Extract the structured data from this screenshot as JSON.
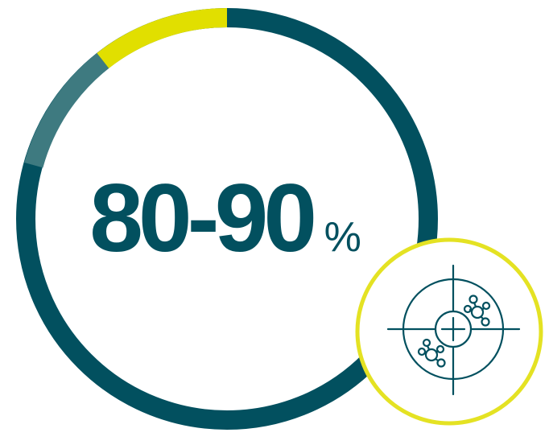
{
  "stat": {
    "value": "80-90",
    "unit": "%"
  },
  "ring": {
    "segments": [
      {
        "name": "primary",
        "fraction": 0.83,
        "color": "#02505F"
      },
      {
        "name": "secondary",
        "fraction": 0.08,
        "color": "#3E7A80"
      },
      {
        "name": "highlight",
        "fraction": 0.09,
        "color": "#E1DF00"
      }
    ]
  },
  "badge": {
    "icon": "target-bacteria-icon",
    "ring_color": "#E4E223",
    "icon_color": "#02505F"
  }
}
